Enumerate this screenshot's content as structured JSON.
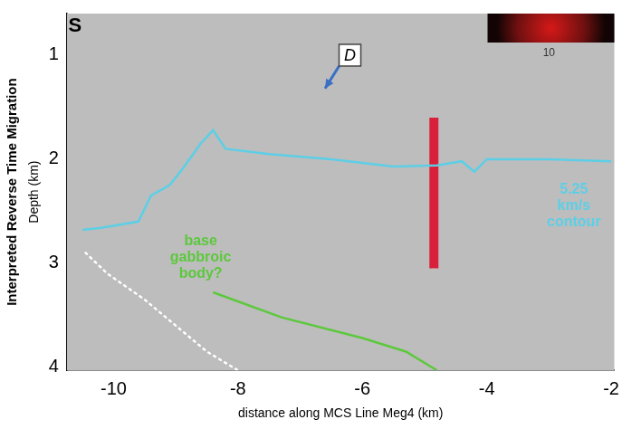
{
  "chart_data": {
    "type": "line",
    "title": "Interpreted Reverse Time Migration",
    "x_label": "distance along MCS Line Meg4 (km)",
    "y_label": "Depth (km)",
    "xlim": [
      -10.75,
      -1.95
    ],
    "xticks": [
      -10,
      -8,
      -6,
      -4,
      -2
    ],
    "ylim": [
      4.03,
      0.6
    ],
    "yticks": [
      1,
      2,
      3,
      4
    ],
    "grid": false,
    "series": [
      {
        "color": "#5ccfe6",
        "line_style": "solid",
        "x": [
          -10.5,
          -10.2,
          -9.6,
          -9.4,
          -9.1,
          -8.9,
          -8.6,
          -8.4,
          -8.2,
          -7.5,
          -6.5,
          -5.5,
          -4.8,
          -4.4,
          -4.2,
          -4.0,
          -3.0,
          -2.0
        ],
        "values": [
          2.68,
          2.66,
          2.6,
          2.35,
          2.25,
          2.1,
          1.85,
          1.72,
          1.9,
          1.95,
          2.0,
          2.07,
          2.06,
          2.02,
          2.12,
          2.0,
          2.0,
          2.02
        ]
      },
      {
        "color": "#5cc83c",
        "line_style": "solid",
        "x": [
          -8.4,
          -7.3,
          -6.0,
          -5.3,
          -4.8
        ],
        "values": [
          3.28,
          3.52,
          3.72,
          3.85,
          4.03
        ]
      },
      {
        "color": "#ffffff",
        "line_style": "dotted",
        "x": [
          -10.45,
          -10.1,
          -9.5,
          -9.0,
          -8.5,
          -8.0
        ],
        "values": [
          2.9,
          3.1,
          3.35,
          3.6,
          3.85,
          4.03
        ]
      },
      {
        "color": "#d8203a",
        "line_style": "outlined",
        "x": [
          -4.85,
          -4.85
        ],
        "values": [
          1.6,
          3.05
        ]
      }
    ],
    "annotations": [
      {
        "text": "S",
        "x": -10.62,
        "y": 0.72,
        "color": "#000000",
        "style": "plain"
      },
      {
        "text": "D",
        "x": -6.2,
        "y": 1.0,
        "color": "#000000",
        "style": "boxed",
        "arrow_to": [
          -6.6,
          1.32
        ]
      },
      {
        "text": "5.25 km/s contour",
        "x": -2.6,
        "y": 2.45,
        "color": "#5ccfe6",
        "style": "plain"
      },
      {
        "text": "base gabbroic body?",
        "x": -8.6,
        "y": 2.95,
        "color": "#5cc83c",
        "style": "plain"
      },
      {
        "text": "10",
        "x": -3.0,
        "y": 0.98,
        "color": "#333333",
        "style": "small"
      }
    ]
  }
}
